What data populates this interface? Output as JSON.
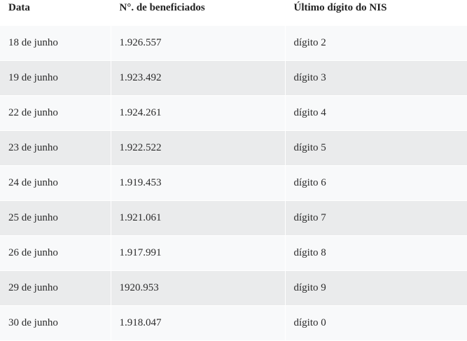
{
  "table": {
    "header": [
      "Data",
      "N°. de beneficiados",
      "Último dígito do NIS"
    ],
    "rows": [
      [
        "18 de junho",
        "1.926.557",
        "dígito 2"
      ],
      [
        "19 de junho",
        "1.923.492",
        "dígito 3"
      ],
      [
        "22 de junho",
        "1.924.261",
        "dígito 4"
      ],
      [
        "23 de junho",
        "1.922.522",
        "dígito 5"
      ],
      [
        "24 de junho",
        "1.919.453",
        "dígito 6"
      ],
      [
        "25 de junho",
        "1.921.061",
        "dígito 7"
      ],
      [
        "26 de junho",
        "1.917.991",
        "dígito 8"
      ],
      [
        "29 de junho",
        "1920.953",
        "dígito 9"
      ],
      [
        "30 de junho",
        "1.918.047",
        "dígito 0"
      ]
    ]
  }
}
